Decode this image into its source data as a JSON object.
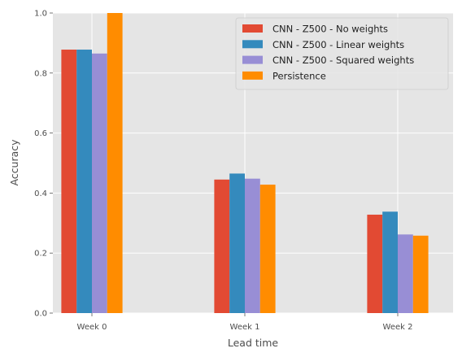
{
  "chart_data": {
    "type": "bar",
    "title": "",
    "xlabel": "Lead time",
    "ylabel": "Accuracy",
    "categories": [
      "Week 0",
      "Week 1",
      "Week 2"
    ],
    "ylim": [
      0,
      1.0
    ],
    "yticks": [
      0.0,
      0.2,
      0.4,
      0.6,
      0.8,
      1.0
    ],
    "ytick_labels": [
      "0.0",
      "0.2",
      "0.4",
      "0.6",
      "0.8",
      "1.0"
    ],
    "grid": true,
    "legend_position": "top-right",
    "series": [
      {
        "name": "CNN - Z500 - No weights",
        "color": "#E24A33",
        "values": [
          0.878,
          0.445,
          0.328
        ]
      },
      {
        "name": "CNN - Z500 - Linear weights",
        "color": "#348ABD",
        "values": [
          0.878,
          0.465,
          0.338
        ]
      },
      {
        "name": "CNN - Z500 - Squared weights",
        "color": "#988ED5",
        "values": [
          0.865,
          0.448,
          0.262
        ]
      },
      {
        "name": "Persistence",
        "color": "#FF8C00",
        "values": [
          1.0,
          0.428,
          0.258
        ]
      }
    ]
  }
}
